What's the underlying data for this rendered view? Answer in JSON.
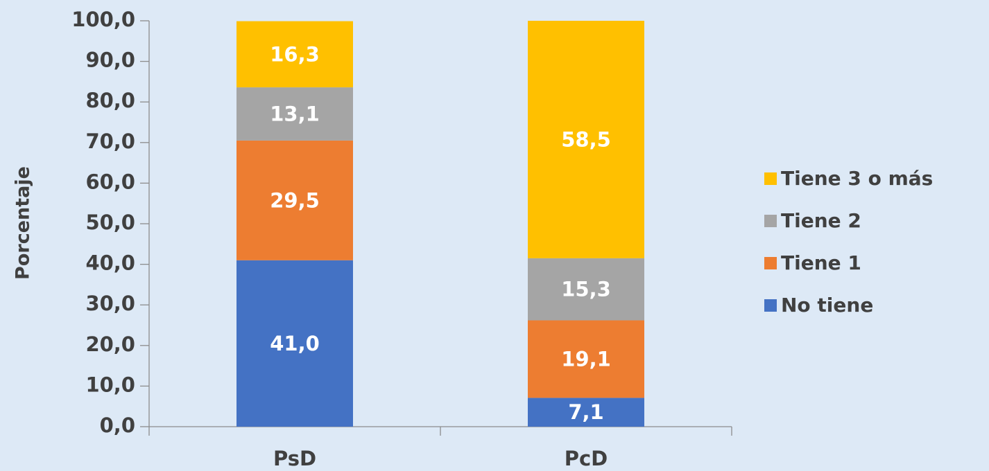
{
  "chart_data": {
    "type": "stacked_bar",
    "y_label": "Porcentaje",
    "categories": [
      "PsD",
      "PcD"
    ],
    "series": [
      {
        "name": "No tiene",
        "color": "#4472c4",
        "values": [
          41.0,
          7.1
        ],
        "value_labels": [
          "41,0",
          "7,1"
        ]
      },
      {
        "name": "Tiene 1",
        "color": "#ed7d31",
        "values": [
          29.5,
          19.1
        ],
        "value_labels": [
          "29,5",
          "19,1"
        ]
      },
      {
        "name": "Tiene 2",
        "color": "#a5a5a5",
        "values": [
          13.1,
          15.3
        ],
        "value_labels": [
          "13,1",
          "15,3"
        ]
      },
      {
        "name": "Tiene 3 o más",
        "color": "#ffc000",
        "values": [
          16.3,
          58.5
        ],
        "value_labels": [
          "16,3",
          "58,5"
        ]
      }
    ],
    "ylim": [
      0,
      100
    ],
    "yticks": [
      {
        "value": 0,
        "label": "0,0"
      },
      {
        "value": 10,
        "label": "10,0"
      },
      {
        "value": 20,
        "label": "20,0"
      },
      {
        "value": 30,
        "label": "30,0"
      },
      {
        "value": 40,
        "label": "40,0"
      },
      {
        "value": 50,
        "label": "50,0"
      },
      {
        "value": 60,
        "label": "60,0"
      },
      {
        "value": 70,
        "label": "70,0"
      },
      {
        "value": 80,
        "label": "80,0"
      },
      {
        "value": 90,
        "label": "90,0"
      },
      {
        "value": 100,
        "label": "100,0"
      }
    ],
    "grid": false,
    "legend_position": "right"
  }
}
